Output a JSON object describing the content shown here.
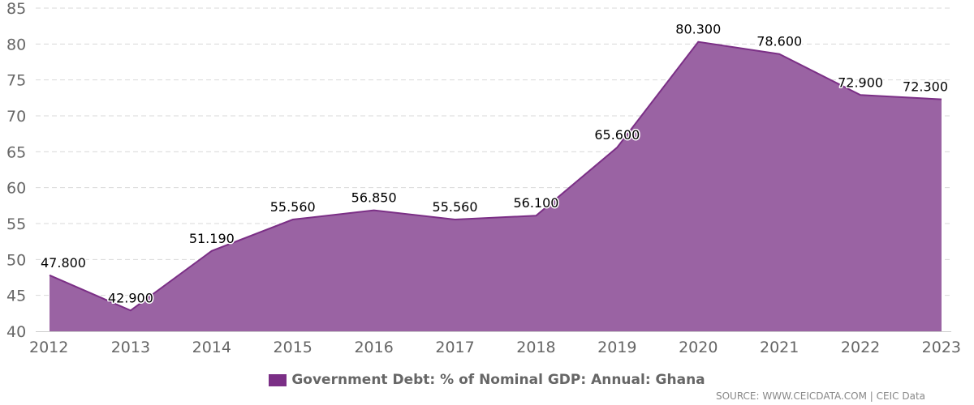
{
  "colors": {
    "line": "#7b2f86",
    "fill": "#9a63a3",
    "grid": "#d9d9d9",
    "axis": "#666666",
    "legend_swatch": "#7b2f86"
  },
  "chart_data": {
    "type": "area",
    "x": [
      "2012",
      "2013",
      "2014",
      "2015",
      "2016",
      "2017",
      "2018",
      "2019",
      "2020",
      "2021",
      "2022",
      "2023"
    ],
    "series": [
      {
        "name": "Government Debt: % of Nominal GDP: Annual: Ghana",
        "values": [
          47.8,
          42.9,
          51.19,
          55.56,
          56.85,
          55.56,
          56.1,
          65.6,
          80.3,
          78.6,
          72.9,
          72.3
        ]
      }
    ],
    "data_labels": [
      "47.800",
      "42.900",
      "51.190",
      "55.560",
      "56.850",
      "55.560",
      "56.100",
      "65.600",
      "80.300",
      "78.600",
      "72.900",
      "72.300"
    ],
    "y_ticks": [
      "40",
      "45",
      "50",
      "55",
      "60",
      "65",
      "70",
      "75",
      "80",
      "85"
    ],
    "ylim": [
      40,
      85
    ],
    "grid": true,
    "legend": "bottom-center"
  },
  "legend_label": "Government Debt: % of Nominal GDP: Annual: Ghana",
  "source_text": "SOURCE: WWW.CEICDATA.COM | CEIC Data"
}
